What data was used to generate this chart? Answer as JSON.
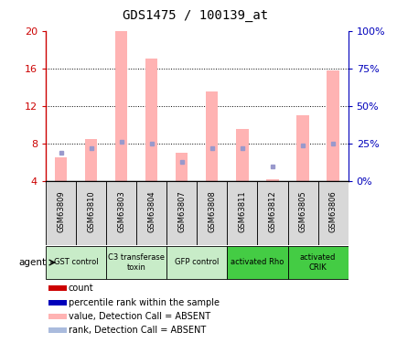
{
  "title": "GDS1475 / 100139_at",
  "samples": [
    "GSM63809",
    "GSM63810",
    "GSM63803",
    "GSM63804",
    "GSM63807",
    "GSM63808",
    "GSM63811",
    "GSM63812",
    "GSM63805",
    "GSM63806"
  ],
  "pink_values": [
    6.5,
    8.5,
    20.0,
    17.0,
    7.0,
    13.5,
    9.5,
    4.2,
    11.0,
    15.8
  ],
  "blue_values": [
    7.0,
    7.5,
    8.2,
    8.0,
    6.0,
    7.5,
    7.5,
    5.5,
    7.8,
    8.0
  ],
  "ylim": [
    4,
    20
  ],
  "yticks_left": [
    4,
    8,
    12,
    16,
    20
  ],
  "yticks_right": [
    0,
    25,
    50,
    75,
    100
  ],
  "agent_groups": [
    {
      "label": "GST control",
      "start": 0,
      "end": 2,
      "color": "#c8ecc8"
    },
    {
      "label": "C3 transferase\ntoxin",
      "start": 2,
      "end": 4,
      "color": "#c8ecc8"
    },
    {
      "label": "GFP control",
      "start": 4,
      "end": 6,
      "color": "#c8ecc8"
    },
    {
      "label": "activated Rho",
      "start": 6,
      "end": 8,
      "color": "#44cc44"
    },
    {
      "label": "activated\nCRIK",
      "start": 8,
      "end": 10,
      "color": "#44cc44"
    }
  ],
  "pink_color": "#ffb3b3",
  "blue_color": "#9999cc",
  "red_color": "#cc0000",
  "dark_blue_color": "#0000bb",
  "ylabel_left_color": "#cc0000",
  "ylabel_right_color": "#0000bb",
  "sample_bg": "#d8d8d8",
  "bg_color": "#ffffff"
}
